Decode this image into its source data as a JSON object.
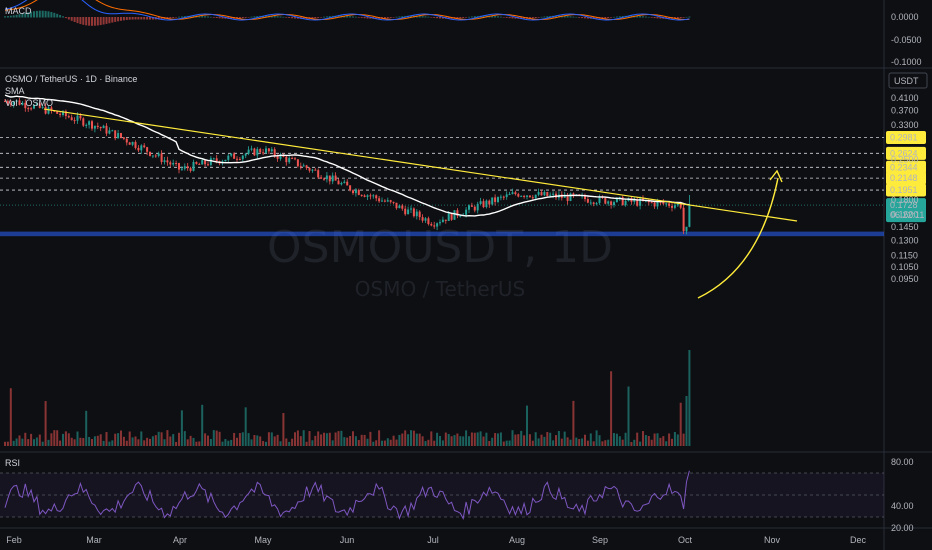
{
  "legend": {
    "macd": "MACD",
    "pair": "OSMO / TetherUS · 1D · Binance",
    "sma": "SMA",
    "vol": "Vol · OSMO",
    "rsi": "RSI"
  },
  "watermark": {
    "symbol": "OSMOUSDT, 1D",
    "name": "OSMO / TetherUS"
  },
  "price_axis": {
    "currency": "USDT",
    "ticks": [
      "0.4100",
      "0.3700",
      "0.3300",
      "0.2500",
      "0.1800",
      "0.1600",
      "0.1450",
      "0.1300",
      "0.1150",
      "0.1050",
      "0.0950"
    ],
    "levels": [
      {
        "label": "0.2981",
        "value": 0.2981
      },
      {
        "label": "0.2624",
        "value": 0.2624
      },
      {
        "label": "0.2344",
        "value": 0.2344
      },
      {
        "label": "0.2148",
        "value": 0.2148
      },
      {
        "label": "0.1951",
        "value": 0.1951
      }
    ],
    "current": {
      "price": "0.1728",
      "countdown": "06:22:11"
    }
  },
  "macd_axis": {
    "ticks": [
      "0.0000",
      "-0.0500",
      "-0.1000"
    ]
  },
  "rsi_axis": {
    "ticks": [
      "80.00",
      "40.00",
      "20.00"
    ]
  },
  "time_axis": {
    "labels": [
      "Feb",
      "Mar",
      "Apr",
      "May",
      "Jun",
      "Jul",
      "Aug",
      "Sep",
      "Oct",
      "Nov",
      "Dec"
    ]
  },
  "colors": {
    "up": "#26a69a",
    "down": "#ef5350",
    "sma": "#ffffff",
    "trendline": "#ffeb3b",
    "support": "#2962ff",
    "rsi": "#7e57c2",
    "macd_line": "#2962ff",
    "signal_line": "#ff6d00"
  },
  "chart_data": {
    "type": "candlestick",
    "symbol": "OSMO / TetherUS",
    "timeframe": "1D",
    "x_range": [
      "Feb",
      "Dec"
    ],
    "y_range": [
      0.095,
      0.41
    ],
    "scale": "log",
    "price_close_trajectory": [
      {
        "month": "Feb",
        "close": 0.4
      },
      {
        "month": "Mar",
        "close": 0.33
      },
      {
        "month": "Apr",
        "close": 0.23
      },
      {
        "month": "May",
        "close": 0.27
      },
      {
        "month": "Jun",
        "close": 0.2
      },
      {
        "month": "Jul",
        "close": 0.15
      },
      {
        "month": "Aug",
        "close": 0.19
      },
      {
        "month": "Sep",
        "close": 0.18
      },
      {
        "month": "Oct",
        "close": 0.1728
      }
    ],
    "horizontal_levels": [
      0.2981,
      0.2624,
      0.2344,
      0.2148,
      0.1951
    ],
    "support_zone": [
      0.1345,
      0.1395
    ],
    "trendline": {
      "from": {
        "month": "Feb",
        "price": 0.375
      },
      "to": {
        "month": "Nov",
        "price": 0.152
      }
    },
    "projection_target": 0.2981,
    "last_price": 0.1728,
    "rsi_range": [
      20,
      80
    ],
    "macd_range": [
      -0.1,
      0.0
    ]
  }
}
